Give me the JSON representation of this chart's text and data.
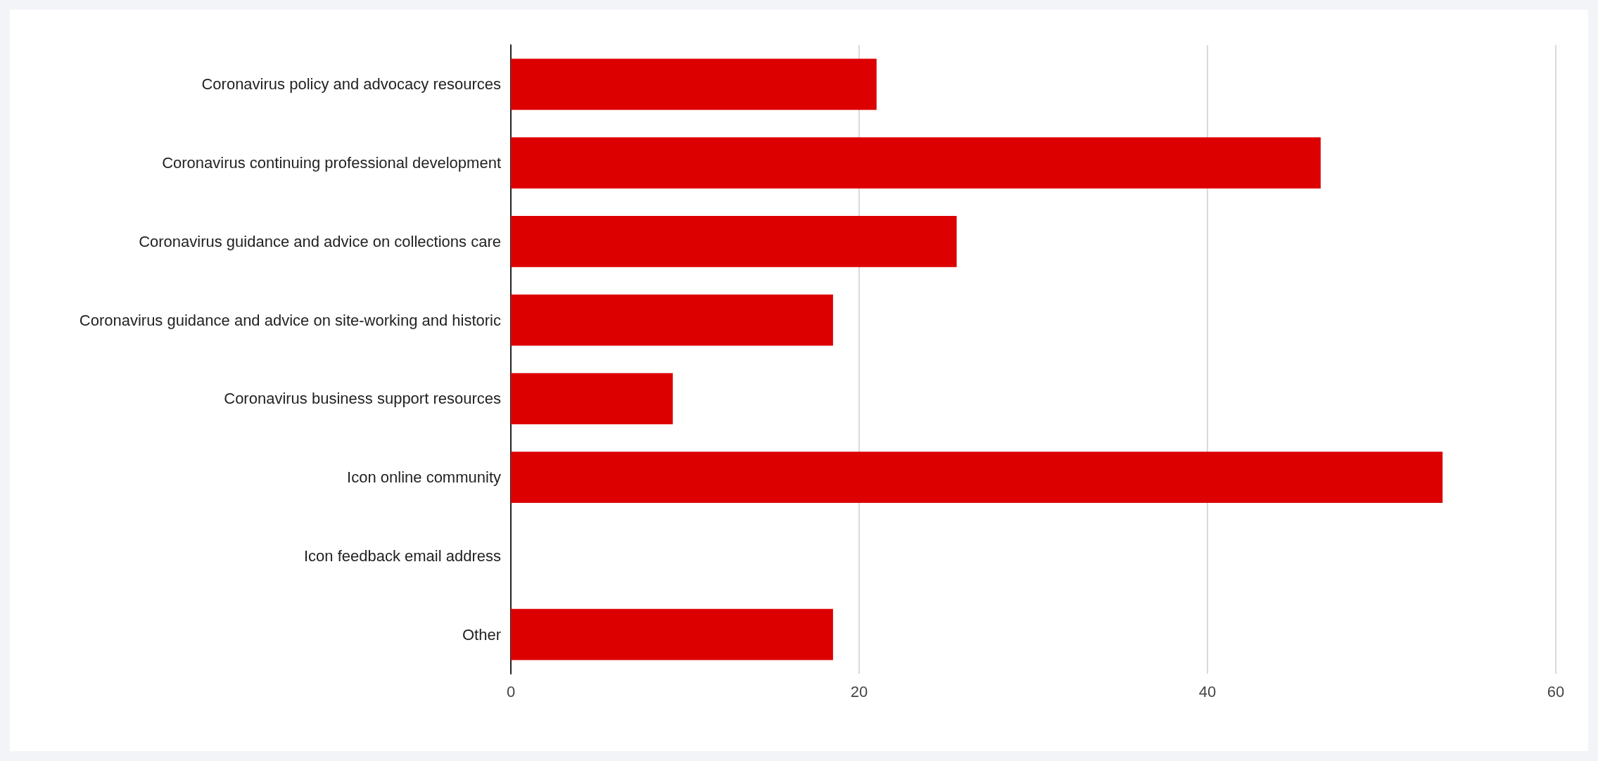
{
  "chart_data": {
    "type": "bar",
    "orientation": "horizontal",
    "categories": [
      "Coronavirus policy and advocacy resources",
      "Coronavirus continuing professional development",
      "Coronavirus guidance and advice on collections care",
      "Coronavirus guidance and advice on site-working and historic",
      "Coronavirus business support resources",
      "Icon online community",
      "Icon feedback email address",
      "Other"
    ],
    "values": [
      21,
      46.5,
      25.6,
      18.5,
      9.3,
      53.5,
      0,
      18.5
    ],
    "color": "#dd0000",
    "xlim": [
      0,
      60
    ],
    "xticks": [
      0,
      20,
      40,
      60
    ],
    "grid": "x"
  }
}
